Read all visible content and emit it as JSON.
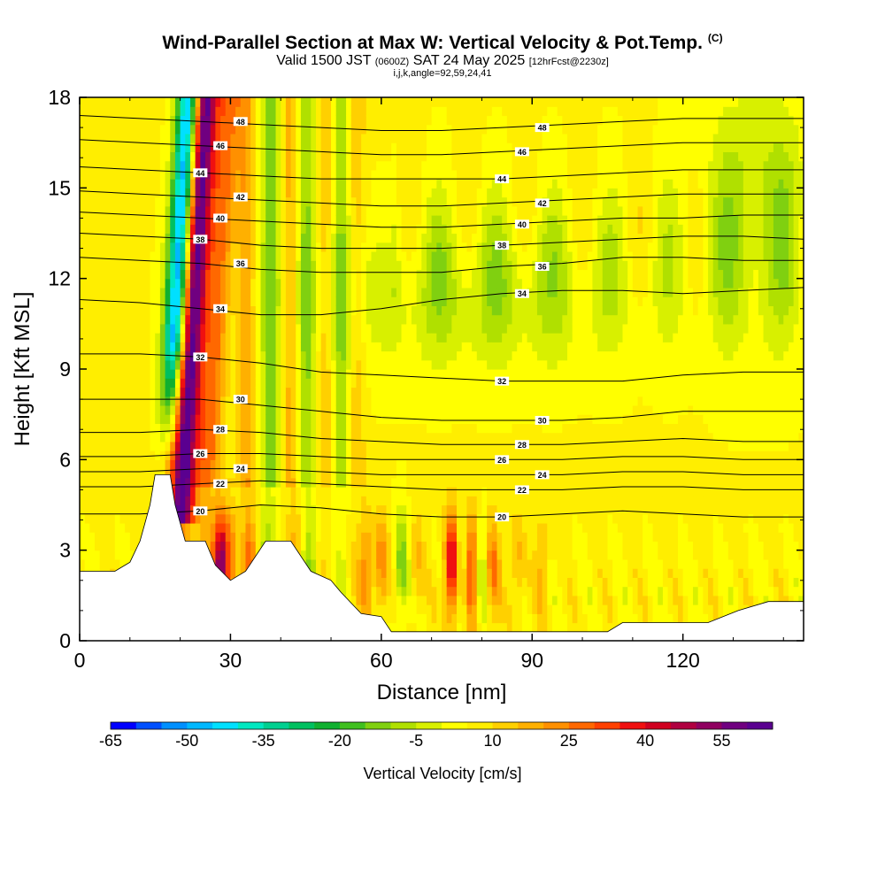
{
  "header": {
    "title": "Wind-Parallel Section at Max W: Vertical Velocity & Pot.Temp.",
    "copyright": "(C)",
    "valid_prefix": "Valid 1500 JST",
    "valid_utc": "(0600Z)",
    "valid_date": "SAT 24 May 2025",
    "forecast": "[12hrFcst@2230z]",
    "indices": "i,j,k,angle=92,59,24,41"
  },
  "chart_data": {
    "type": "heatmap",
    "xlabel": "Distance [nm]",
    "ylabel": "Height [Kft MSL]",
    "xlim": [
      0,
      144
    ],
    "ylim": [
      0,
      18
    ],
    "x_ticks": [
      "0",
      "30",
      "60",
      "90",
      "120"
    ],
    "y_ticks": [
      "0",
      "3",
      "6",
      "9",
      "12",
      "15",
      "18"
    ],
    "field": "Vertical Velocity [cm/s] (filled) with Potential Temperature contours",
    "colorbar": {
      "title": "Vertical Velocity [cm/s]",
      "labels": [
        "-65",
        "-50",
        "-35",
        "-20",
        "-5",
        "10",
        "25",
        "40",
        "55"
      ],
      "colors": [
        "#0000ff",
        "#0050ff",
        "#0090ff",
        "#00b8ff",
        "#00e0ff",
        "#00e8c0",
        "#00d090",
        "#00c060",
        "#10b030",
        "#40c020",
        "#80d010",
        "#b0e000",
        "#d8f000",
        "#ffff00",
        "#ffee00",
        "#ffd000",
        "#ffb000",
        "#ff9000",
        "#ff6800",
        "#ff4000",
        "#f01010",
        "#d00020",
        "#b00040",
        "#900060",
        "#700080",
        "#5a0090"
      ]
    },
    "terrain_kft": [
      [
        0,
        2.3
      ],
      [
        7,
        2.3
      ],
      [
        10,
        2.6
      ],
      [
        12,
        3.3
      ],
      [
        14,
        4.5
      ],
      [
        15,
        5.5
      ],
      [
        18,
        5.5
      ],
      [
        19,
        4.5
      ],
      [
        21,
        3.3
      ],
      [
        25,
        3.3
      ],
      [
        27,
        2.5
      ],
      [
        30,
        2.0
      ],
      [
        33,
        2.3
      ],
      [
        37,
        3.3
      ],
      [
        42,
        3.3
      ],
      [
        46,
        2.3
      ],
      [
        50,
        2.0
      ],
      [
        52,
        1.6
      ],
      [
        56,
        0.9
      ],
      [
        60,
        0.8
      ],
      [
        62,
        0.3
      ],
      [
        105,
        0.3
      ],
      [
        108,
        0.6
      ],
      [
        125,
        0.6
      ],
      [
        131,
        1.0
      ],
      [
        137,
        1.3
      ],
      [
        144,
        1.3
      ]
    ],
    "theta_contours": [
      {
        "label": "20",
        "y": [
          4.2,
          4.2,
          4.3,
          4.5,
          4.4,
          4.2,
          4.1,
          4.1,
          4.2,
          4.3,
          4.2,
          4.1,
          4.1
        ]
      },
      {
        "label": "22",
        "y": [
          5.1,
          5.1,
          5.2,
          5.3,
          5.2,
          5.1,
          5.0,
          5.0,
          5.0,
          5.1,
          5.1,
          5.0,
          5.0
        ]
      },
      {
        "label": "24",
        "y": [
          5.6,
          5.6,
          5.7,
          5.7,
          5.6,
          5.5,
          5.5,
          5.5,
          5.5,
          5.6,
          5.6,
          5.5,
          5.5
        ]
      },
      {
        "label": "26",
        "y": [
          6.1,
          6.1,
          6.2,
          6.2,
          6.1,
          6.0,
          6.0,
          6.0,
          6.0,
          6.1,
          6.1,
          6.0,
          6.0
        ]
      },
      {
        "label": "28",
        "y": [
          6.9,
          6.9,
          7.0,
          6.9,
          6.7,
          6.6,
          6.5,
          6.5,
          6.5,
          6.6,
          6.7,
          6.6,
          6.6
        ]
      },
      {
        "label": "30",
        "y": [
          8.0,
          8.0,
          8.0,
          7.8,
          7.6,
          7.4,
          7.3,
          7.3,
          7.3,
          7.4,
          7.6,
          7.6,
          7.6
        ]
      },
      {
        "label": "32",
        "y": [
          9.5,
          9.5,
          9.4,
          9.2,
          8.9,
          8.8,
          8.7,
          8.6,
          8.6,
          8.6,
          8.8,
          8.9,
          8.9
        ]
      },
      {
        "label": "34",
        "y": [
          11.3,
          11.2,
          11.0,
          10.8,
          10.8,
          11.0,
          11.3,
          11.5,
          11.6,
          11.6,
          11.5,
          11.6,
          11.7
        ]
      },
      {
        "label": "36",
        "y": [
          12.7,
          12.6,
          12.5,
          12.3,
          12.2,
          12.2,
          12.2,
          12.4,
          12.5,
          12.7,
          12.7,
          12.6,
          12.6
        ]
      },
      {
        "label": "38",
        "y": [
          13.5,
          13.4,
          13.3,
          13.1,
          13.0,
          13.0,
          13.0,
          13.1,
          13.2,
          13.3,
          13.4,
          13.4,
          13.3
        ]
      },
      {
        "label": "40",
        "y": [
          14.2,
          14.1,
          14.0,
          13.9,
          13.8,
          13.7,
          13.7,
          13.8,
          13.9,
          14.0,
          14.0,
          14.1,
          14.1
        ]
      },
      {
        "label": "42",
        "y": [
          14.9,
          14.8,
          14.7,
          14.6,
          14.5,
          14.4,
          14.4,
          14.5,
          14.6,
          14.7,
          14.8,
          14.8,
          14.8
        ]
      },
      {
        "label": "44",
        "y": [
          15.7,
          15.6,
          15.5,
          15.4,
          15.3,
          15.3,
          15.3,
          15.3,
          15.4,
          15.5,
          15.6,
          15.6,
          15.6
        ]
      },
      {
        "label": "46",
        "y": [
          16.6,
          16.5,
          16.4,
          16.3,
          16.2,
          16.1,
          16.1,
          16.2,
          16.3,
          16.4,
          16.5,
          16.5,
          16.5
        ]
      },
      {
        "label": "48",
        "y": [
          17.4,
          17.3,
          17.2,
          17.1,
          17.0,
          16.9,
          16.9,
          17.0,
          17.1,
          17.2,
          17.3,
          17.3,
          17.3
        ]
      }
    ]
  }
}
